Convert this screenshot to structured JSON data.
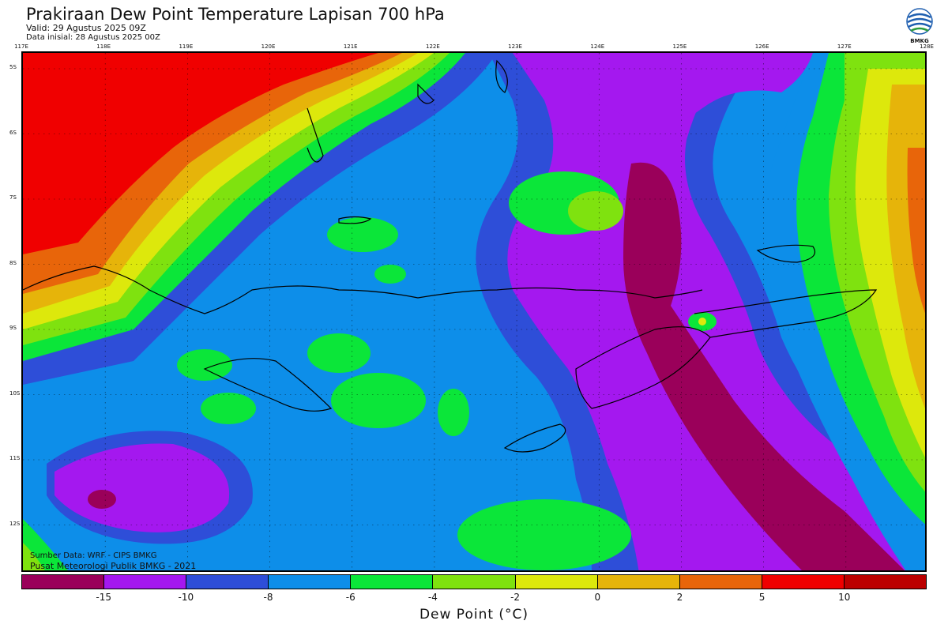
{
  "header": {
    "title": "Prakiraan Dew Point Temperature Lapisan 700 hPa",
    "valid": "Valid: 29 Agustus 2025 09Z",
    "init": "Data inisial: 28 Agustus 2025 00Z",
    "logo_text": "BMKG"
  },
  "map": {
    "lon_ticks": [
      "117E",
      "118E",
      "119E",
      "120E",
      "121E",
      "122E",
      "123E",
      "124E",
      "125E",
      "126E",
      "127E",
      "128E"
    ],
    "lat_ticks": [
      "5S",
      "6S",
      "7S",
      "8S",
      "9S",
      "10S",
      "11S",
      "12S"
    ],
    "credit_source": "Sumber Data: WRF - CIPS BMKG",
    "credit_org": "Pusat Meteorologi Publik BMKG - 2021"
  },
  "legend": {
    "title": "Dew Point (°C)",
    "labels": [
      "-15",
      "-10",
      "-8",
      "-6",
      "-4",
      "-2",
      "0",
      "2",
      "5",
      "10"
    ],
    "colors": [
      "#9a005a",
      "#a418ef",
      "#2e4ed8",
      "#0d8ee9",
      "#0be639",
      "#7fe20f",
      "#dde80c",
      "#e6b40a",
      "#e8650a",
      "#f00000",
      "#bb0000"
    ]
  }
}
